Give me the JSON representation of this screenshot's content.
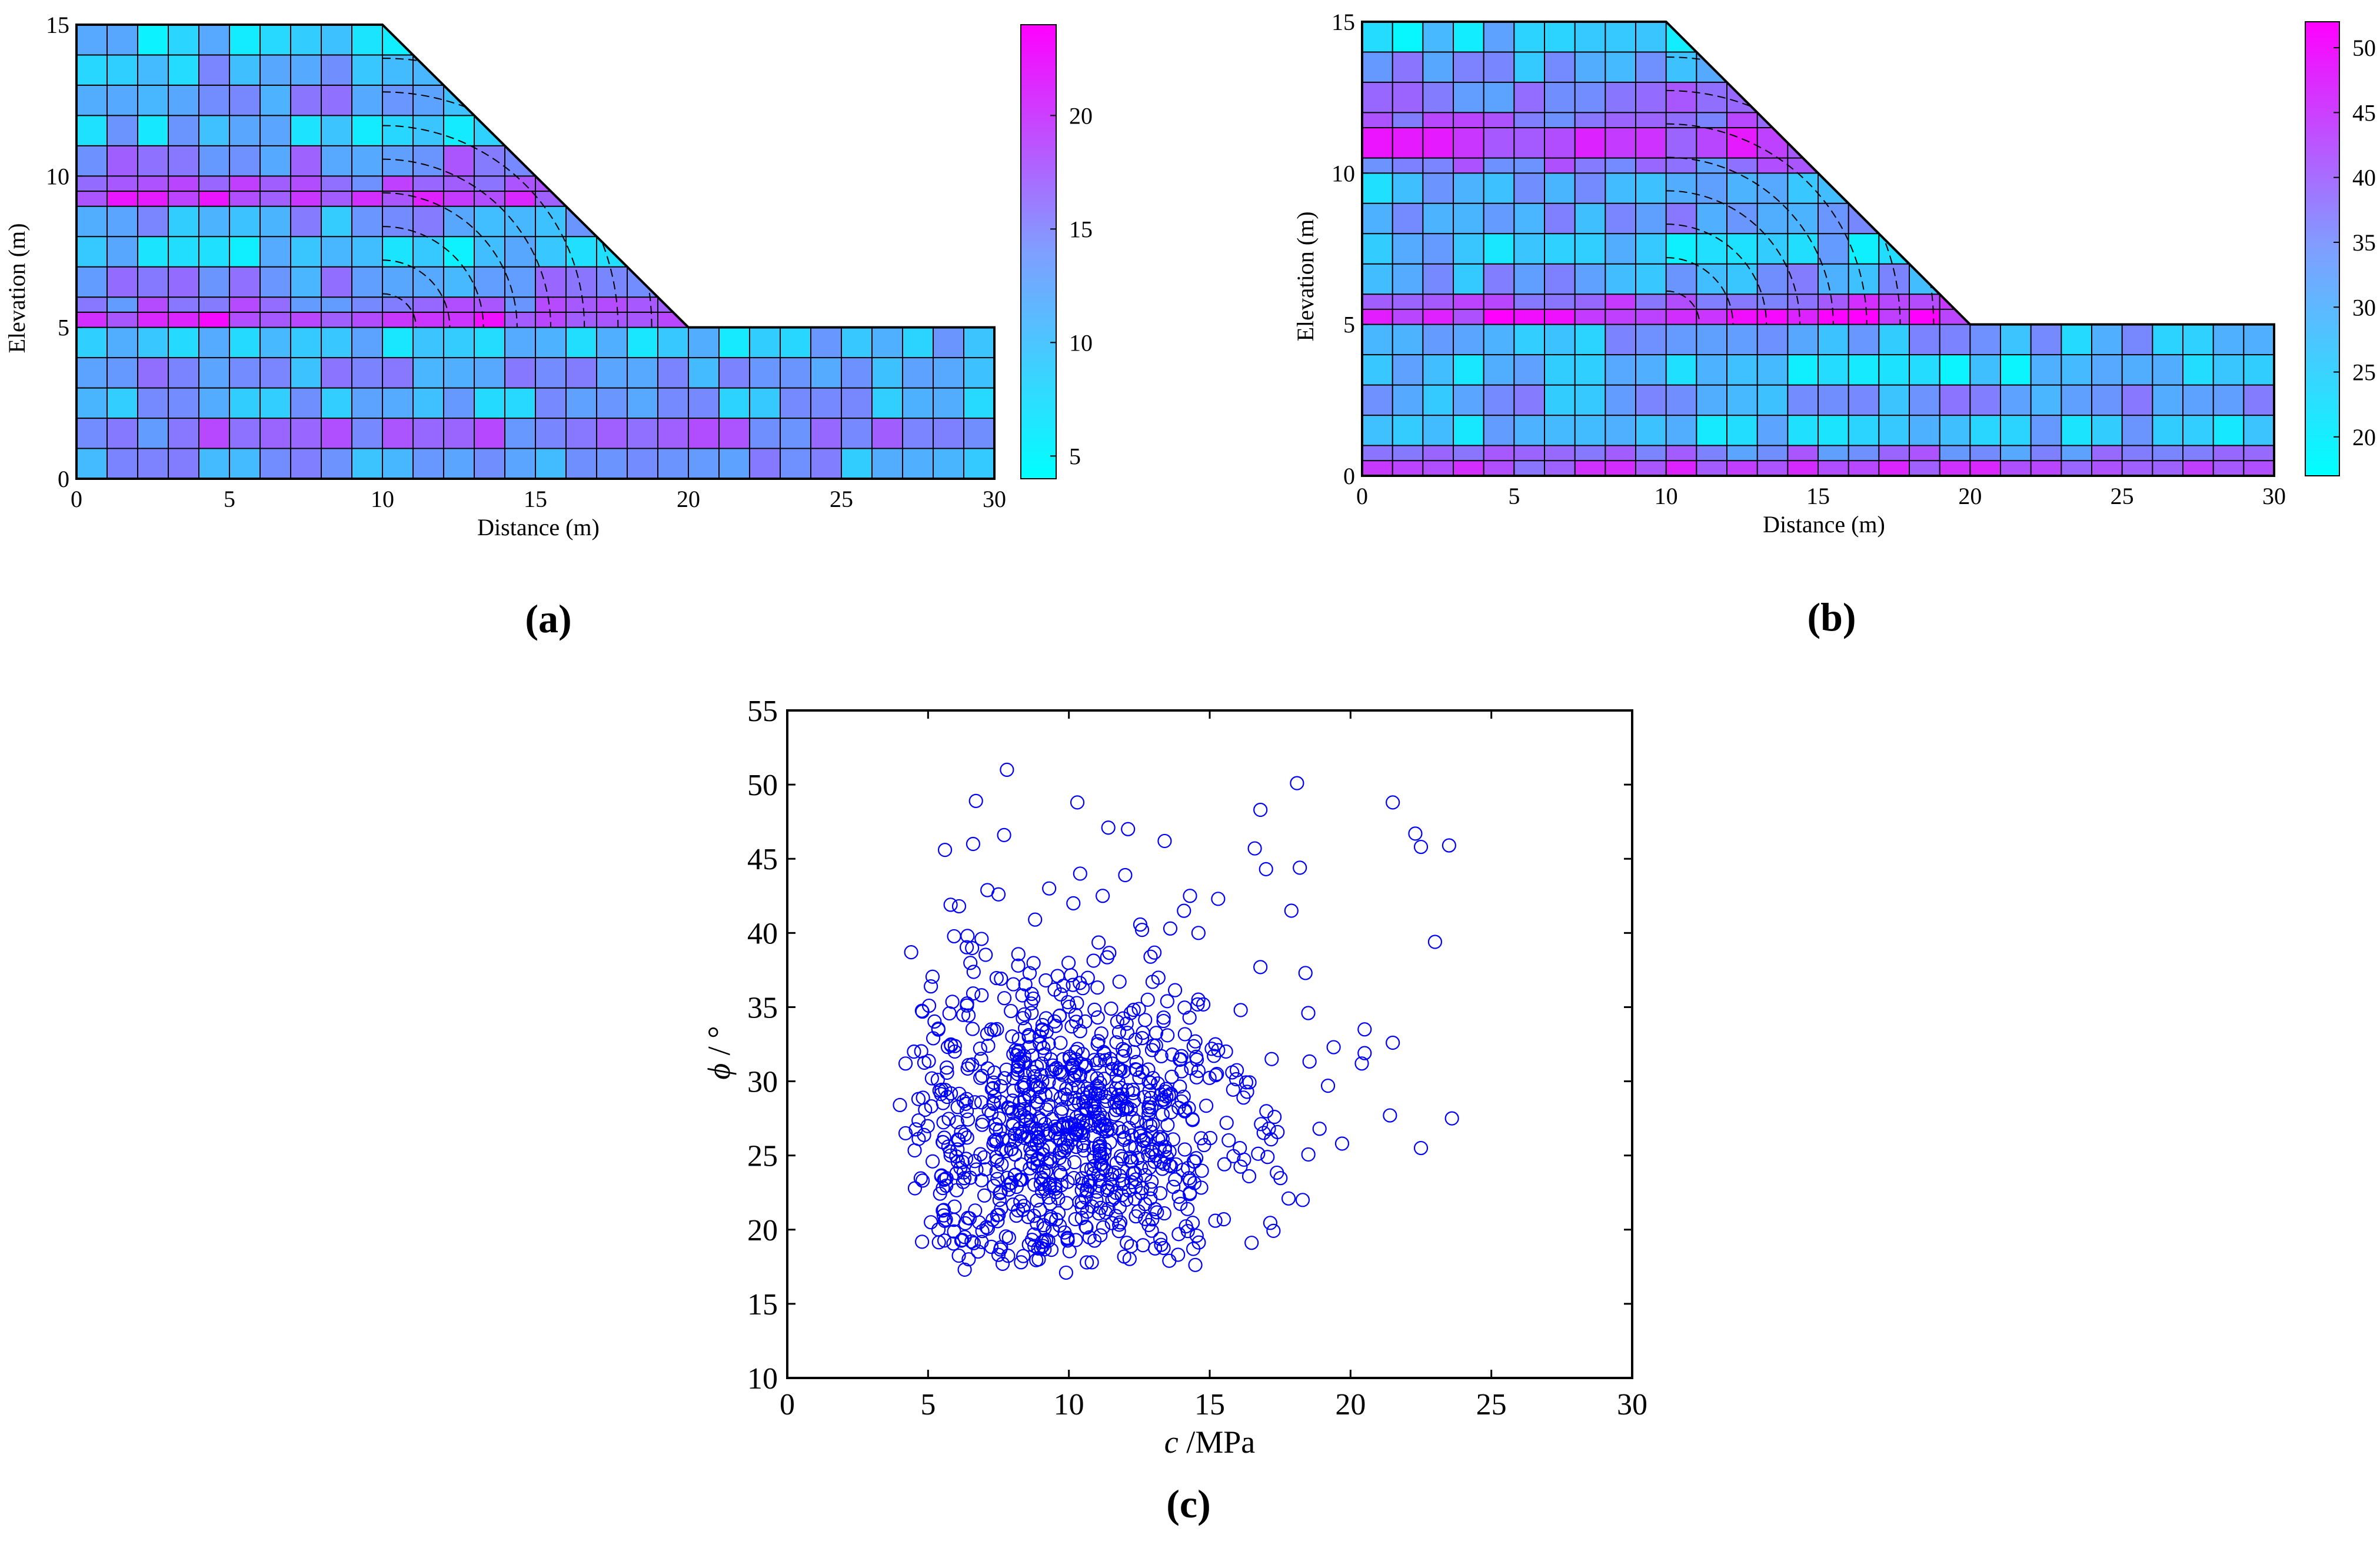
{
  "chart_data": [
    {
      "panel": "(a)",
      "type": "heatmap",
      "title": "",
      "xlabel": "Distance (m)",
      "ylabel": "Elevation (m)",
      "xlim": [
        0,
        30
      ],
      "ylim": [
        0,
        15
      ],
      "xticks": [
        "0",
        "5",
        "10",
        "15",
        "20",
        "25",
        "30"
      ],
      "yticks": [
        "0",
        "5",
        "10",
        "15"
      ],
      "geometry_polygon": [
        [
          0,
          0
        ],
        [
          30,
          0
        ],
        [
          30,
          5
        ],
        [
          20,
          5
        ],
        [
          10,
          15
        ],
        [
          0,
          15
        ]
      ],
      "colorbar": {
        "min": 4,
        "max": 24,
        "ticks": [
          "5",
          "10",
          "15",
          "20"
        ]
      },
      "colormap": [
        "#00ffff",
        "#ff00ff"
      ],
      "field_variable": "c",
      "bands": [
        {
          "y0": 14.0,
          "y1": 15.0,
          "value": 8
        },
        {
          "y0": 13.0,
          "y1": 14.0,
          "value": 10
        },
        {
          "y0": 12.0,
          "y1": 13.0,
          "value": 12
        },
        {
          "y0": 11.0,
          "y1": 12.0,
          "value": 9
        },
        {
          "y0": 10.0,
          "y1": 11.0,
          "value": 14
        },
        {
          "y0": 9.5,
          "y1": 10.0,
          "value": 16
        },
        {
          "y0": 9.0,
          "y1": 9.5,
          "value": 19
        },
        {
          "y0": 8.0,
          "y1": 9.0,
          "value": 11
        },
        {
          "y0": 7.0,
          "y1": 8.0,
          "value": 8
        },
        {
          "y0": 6.0,
          "y1": 7.0,
          "value": 13
        },
        {
          "y0": 5.5,
          "y1": 6.0,
          "value": 15
        },
        {
          "y0": 5.0,
          "y1": 5.5,
          "value": 20
        },
        {
          "y0": 4.0,
          "y1": 5.0,
          "value": 9
        },
        {
          "y0": 3.0,
          "y1": 4.0,
          "value": 12
        },
        {
          "y0": 2.0,
          "y1": 3.0,
          "value": 10
        },
        {
          "y0": 1.0,
          "y1": 2.0,
          "value": 15
        },
        {
          "y0": 0.0,
          "y1": 1.0,
          "value": 11
        }
      ]
    },
    {
      "panel": "(b)",
      "type": "heatmap",
      "title": "",
      "xlabel": "Distance (m)",
      "ylabel": "Elevation (m)",
      "xlim": [
        0,
        30
      ],
      "ylim": [
        0,
        15
      ],
      "xticks": [
        "0",
        "5",
        "10",
        "15",
        "20",
        "25",
        "30"
      ],
      "yticks": [
        "0",
        "5",
        "10",
        "15"
      ],
      "geometry_polygon": [
        [
          0,
          0
        ],
        [
          30,
          0
        ],
        [
          30,
          5
        ],
        [
          20,
          5
        ],
        [
          10,
          15
        ],
        [
          0,
          15
        ]
      ],
      "colorbar": {
        "min": 17,
        "max": 52,
        "ticks": [
          "20",
          "25",
          "30",
          "35",
          "40",
          "45",
          "50"
        ]
      },
      "colormap": [
        "#00ffff",
        "#ff00ff"
      ],
      "field_variable": "phi",
      "bands": [
        {
          "y0": 14.0,
          "y1": 15.0,
          "value": 24
        },
        {
          "y0": 13.0,
          "y1": 14.0,
          "value": 30
        },
        {
          "y0": 12.0,
          "y1": 13.0,
          "value": 34
        },
        {
          "y0": 11.5,
          "y1": 12.0,
          "value": 38
        },
        {
          "y0": 10.5,
          "y1": 11.5,
          "value": 44
        },
        {
          "y0": 10.0,
          "y1": 10.5,
          "value": 36
        },
        {
          "y0": 9.0,
          "y1": 10.0,
          "value": 27
        },
        {
          "y0": 8.0,
          "y1": 9.0,
          "value": 31
        },
        {
          "y0": 7.0,
          "y1": 8.0,
          "value": 25
        },
        {
          "y0": 6.0,
          "y1": 7.0,
          "value": 29
        },
        {
          "y0": 5.5,
          "y1": 6.0,
          "value": 40
        },
        {
          "y0": 5.0,
          "y1": 5.5,
          "value": 47
        },
        {
          "y0": 4.0,
          "y1": 5.0,
          "value": 28
        },
        {
          "y0": 3.0,
          "y1": 4.0,
          "value": 24
        },
        {
          "y0": 2.0,
          "y1": 3.0,
          "value": 30
        },
        {
          "y0": 1.0,
          "y1": 2.0,
          "value": 26
        },
        {
          "y0": 0.5,
          "y1": 1.0,
          "value": 35
        },
        {
          "y0": 0.0,
          "y1": 0.5,
          "value": 42
        }
      ]
    },
    {
      "panel": "(c)",
      "type": "scatter",
      "title": "",
      "xlabel": "c /MPa",
      "ylabel": "ϕ / °",
      "xlim": [
        0,
        30
      ],
      "ylim": [
        10,
        55
      ],
      "xticks": [
        "0",
        "5",
        "10",
        "15",
        "20",
        "25",
        "30"
      ],
      "yticks": [
        "10",
        "15",
        "20",
        "25",
        "30",
        "35",
        "40",
        "45",
        "50",
        "55"
      ],
      "marker": "open-circle",
      "color": "#0000ff",
      "n_points": 1000,
      "distribution": {
        "c_mean": 10,
        "c_sd": 3,
        "phi_mean": 27,
        "phi_sd": 6
      },
      "points": [
        [
          7.8,
          51.0
        ],
        [
          18.1,
          50.1
        ],
        [
          21.5,
          48.8
        ],
        [
          16.8,
          48.3
        ],
        [
          10.3,
          48.8
        ],
        [
          6.7,
          48.9
        ],
        [
          22.3,
          46.7
        ],
        [
          23.5,
          45.9
        ],
        [
          22.5,
          45.8
        ],
        [
          16.6,
          45.7
        ],
        [
          13.4,
          46.2
        ],
        [
          11.4,
          47.1
        ],
        [
          12.1,
          47.0
        ],
        [
          17.0,
          44.3
        ],
        [
          18.2,
          44.4
        ],
        [
          7.7,
          46.6
        ],
        [
          6.6,
          46.0
        ],
        [
          5.6,
          45.6
        ],
        [
          9.3,
          43.0
        ],
        [
          12.0,
          43.9
        ],
        [
          17.9,
          41.5
        ],
        [
          23.0,
          39.4
        ],
        [
          18.4,
          37.3
        ],
        [
          5.1,
          36.4
        ],
        [
          4.4,
          38.7
        ],
        [
          16.8,
          37.7
        ],
        [
          20.5,
          33.5
        ],
        [
          21.5,
          32.6
        ],
        [
          18.5,
          34.6
        ],
        [
          16.1,
          34.8
        ],
        [
          4.8,
          34.7
        ],
        [
          23.6,
          27.5
        ],
        [
          21.4,
          27.7
        ],
        [
          22.5,
          25.5
        ],
        [
          19.7,
          25.8
        ],
        [
          18.9,
          26.8
        ],
        [
          18.3,
          22.0
        ],
        [
          17.8,
          22.1
        ],
        [
          4.2,
          26.5
        ],
        [
          4.0,
          28.4
        ],
        [
          4.2,
          31.2
        ],
        [
          4.5,
          32.0
        ],
        [
          5.1,
          20.5
        ],
        [
          5.6,
          23.4
        ],
        [
          6.3,
          17.3
        ],
        [
          6.3,
          19.5
        ],
        [
          9.9,
          17.1
        ],
        [
          8.3,
          17.8
        ],
        [
          7.5,
          18.3
        ],
        [
          15.2,
          20.6
        ],
        [
          15.5,
          20.7
        ],
        [
          13.9,
          19.7
        ],
        [
          14.3,
          23.3
        ],
        [
          16.4,
          23.6
        ],
        [
          17.1,
          26.8
        ],
        [
          17.3,
          27.6
        ],
        [
          19.4,
          32.3
        ],
        [
          20.4,
          31.2
        ],
        [
          20.5,
          31.9
        ],
        [
          19.2,
          29.7
        ],
        [
          17.2,
          31.5
        ],
        [
          15.3,
          32.1
        ],
        [
          14.6,
          30.7
        ],
        [
          12.8,
          35.5
        ],
        [
          13.5,
          33.1
        ],
        [
          11.2,
          42.5
        ],
        [
          10.4,
          44.0
        ],
        [
          8.8,
          40.9
        ],
        [
          7.5,
          42.6
        ],
        [
          6.9,
          39.6
        ],
        [
          5.8,
          41.9
        ],
        [
          6.1,
          41.8
        ],
        [
          6.4,
          39.8
        ],
        [
          13.6,
          40.3
        ],
        [
          14.6,
          40.0
        ],
        [
          12.9,
          38.4
        ],
        [
          14.3,
          42.5
        ],
        [
          15.3,
          42.3
        ],
        [
          9.6,
          37.1
        ],
        [
          8.2,
          37.8
        ],
        [
          6.9,
          35.8
        ],
        [
          7.1,
          33.2
        ],
        [
          8.6,
          32.3
        ],
        [
          10.1,
          33.7
        ],
        [
          11.5,
          34.9
        ],
        [
          12.4,
          31.3
        ],
        [
          11.0,
          30.2
        ],
        [
          9.4,
          29.1
        ],
        [
          8.0,
          28.7
        ],
        [
          7.4,
          27.1
        ],
        [
          6.3,
          26.4
        ],
        [
          5.8,
          25.0
        ],
        [
          6.5,
          23.5
        ],
        [
          7.0,
          22.3
        ],
        [
          8.4,
          21.6
        ],
        [
          9.1,
          20.3
        ],
        [
          10.6,
          20.2
        ],
        [
          11.8,
          21.5
        ],
        [
          12.6,
          22.8
        ],
        [
          13.8,
          24.4
        ],
        [
          14.8,
          25.7
        ],
        [
          15.6,
          27.2
        ],
        [
          16.2,
          28.9
        ],
        [
          15.8,
          30.6
        ],
        [
          14.0,
          31.7
        ],
        [
          12.9,
          29.9
        ],
        [
          11.7,
          28.6
        ],
        [
          10.5,
          27.3
        ],
        [
          9.7,
          26.1
        ],
        [
          8.9,
          24.8
        ],
        [
          8.1,
          23.7
        ],
        [
          7.6,
          25.4
        ],
        [
          8.6,
          26.9
        ],
        [
          9.2,
          28.1
        ],
        [
          10.1,
          29.5
        ],
        [
          11.1,
          25.8
        ],
        [
          10.8,
          24.1
        ],
        [
          9.5,
          23.0
        ],
        [
          11.9,
          26.6
        ],
        [
          12.2,
          24.6
        ]
      ]
    }
  ],
  "labels": {
    "a": "(a)",
    "b": "(b)",
    "c": "(c)"
  },
  "colorbar_a_ticks": [
    "5",
    "10",
    "15",
    "20"
  ],
  "colorbar_b_ticks": [
    "20",
    "25",
    "30",
    "35",
    "40",
    "45",
    "50"
  ]
}
